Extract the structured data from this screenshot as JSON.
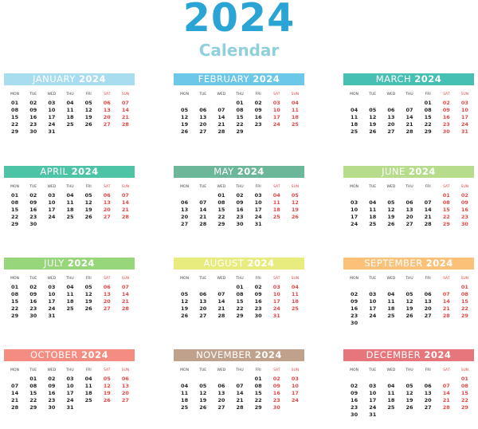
{
  "title": {
    "year": "2024",
    "subtitle": "Calendar"
  },
  "year": "2024",
  "day_names": [
    "MON",
    "TUE",
    "WED",
    "THU",
    "FRI",
    "SAT",
    "SUN"
  ],
  "colors": {
    "title": "#2aa4d4",
    "subtitle": "#8fd0dc",
    "weekend": "#e84848"
  },
  "months": [
    {
      "name": "JANUARY",
      "color": "#a8ddf0",
      "start": 0,
      "days": 31
    },
    {
      "name": "FEBRUARY",
      "color": "#6cc8e8",
      "start": 3,
      "days": 29
    },
    {
      "name": "MARCH",
      "color": "#46c0b3",
      "start": 4,
      "days": 31
    },
    {
      "name": "APRIL",
      "color": "#4cc4a5",
      "start": 0,
      "days": 30
    },
    {
      "name": "MAY",
      "color": "#6cb69a",
      "start": 2,
      "days": 31
    },
    {
      "name": "JUNE",
      "color": "#b6dc8c",
      "start": 5,
      "days": 30
    },
    {
      "name": "JULY",
      "color": "#98d67c",
      "start": 0,
      "days": 31
    },
    {
      "name": "AUGUST",
      "color": "#e8ec7e",
      "start": 3,
      "days": 31
    },
    {
      "name": "SEPTEMBER",
      "color": "#fbc178",
      "start": 6,
      "days": 30
    },
    {
      "name": "OCTOBER",
      "color": "#f58c82",
      "start": 1,
      "days": 31
    },
    {
      "name": "NOVEMBER",
      "color": "#bfa18c",
      "start": 4,
      "days": 30
    },
    {
      "name": "DECEMBER",
      "color": "#e6767c",
      "start": 6,
      "days": 31
    }
  ]
}
